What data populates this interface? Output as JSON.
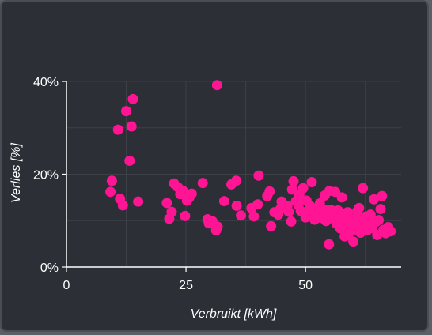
{
  "chart_data": {
    "type": "scatter",
    "title": "",
    "xlabel": "Verbruikt [kWh]",
    "ylabel": "Verlies [%]",
    "xlim": [
      0,
      70
    ],
    "ylim": [
      0,
      40
    ],
    "x_ticks": [
      "0",
      "25",
      "50"
    ],
    "x_tick_values": [
      0,
      25,
      50
    ],
    "y_ticks": [
      "0%",
      "20%",
      "40%"
    ],
    "y_tick_values": [
      0,
      20,
      40
    ],
    "grid": true,
    "colors": {
      "point": "#ff1493",
      "background": "#2c2f36",
      "grid": "#3d4047",
      "axis": "#ffffff"
    },
    "series": [
      {
        "points": [
          [
            9.2,
            16.2
          ],
          [
            9.5,
            18.6
          ],
          [
            11.2,
            14.7
          ],
          [
            11.8,
            13.3
          ],
          [
            10.8,
            29.6
          ],
          [
            12.5,
            33.6
          ],
          [
            13.9,
            36.2
          ],
          [
            13.6,
            30.3
          ],
          [
            13.2,
            22.9
          ],
          [
            15,
            14.1
          ],
          [
            31.5,
            39.2
          ],
          [
            21.0,
            13.8
          ],
          [
            21.5,
            10.4
          ],
          [
            22.0,
            11.9
          ],
          [
            22.5,
            18.0
          ],
          [
            23.3,
            17.2
          ],
          [
            23.8,
            15.7
          ],
          [
            24.3,
            16.5
          ],
          [
            24.8,
            11.0
          ],
          [
            25.2,
            14.3
          ],
          [
            25.7,
            15.0
          ],
          [
            26.2,
            15.8
          ],
          [
            28.5,
            18.1
          ],
          [
            29.5,
            10.3
          ],
          [
            29.8,
            9.4
          ],
          [
            30.5,
            9.9
          ],
          [
            31.6,
            8.7
          ],
          [
            31.3,
            7.9
          ],
          [
            33,
            14.2
          ],
          [
            34.5,
            17.8
          ],
          [
            35.5,
            18.6
          ],
          [
            35.6,
            13.2
          ],
          [
            36.5,
            11.1
          ],
          [
            38.7,
            12.7
          ],
          [
            39.2,
            10.9
          ],
          [
            40,
            13.5
          ],
          [
            40.2,
            19.7
          ],
          [
            42,
            15.3
          ],
          [
            42.5,
            16.3
          ],
          [
            42.8,
            8.8
          ],
          [
            43.5,
            11.8
          ],
          [
            44.3,
            11.3
          ],
          [
            44.8,
            12.6
          ],
          [
            45,
            14.1
          ],
          [
            45.5,
            13.4
          ],
          [
            46,
            12.7
          ],
          [
            46.5,
            11.9
          ],
          [
            47,
            9.8
          ],
          [
            47.2,
            16.7
          ],
          [
            47.5,
            18.5
          ],
          [
            48,
            14.2
          ],
          [
            48.5,
            13.3
          ],
          [
            49,
            12.1
          ],
          [
            49.5,
            17.0
          ],
          [
            50,
            10.7
          ],
          [
            50.2,
            14.3
          ],
          [
            50.5,
            12.0
          ],
          [
            51,
            13.1
          ],
          [
            51.3,
            18.3
          ],
          [
            51.8,
            11.5
          ],
          [
            52.2,
            12.6
          ],
          [
            52.6,
            10.9
          ],
          [
            53,
            13.7
          ],
          [
            53.3,
            10.6
          ],
          [
            53.6,
            11.8
          ],
          [
            54,
            15.4
          ],
          [
            54.3,
            9.9
          ],
          [
            54.6,
            11.2
          ],
          [
            54.9,
            4.9
          ],
          [
            55,
            16.4
          ],
          [
            55.3,
            12.3
          ],
          [
            55.6,
            10.5
          ],
          [
            55.9,
            11.1
          ],
          [
            56.2,
            16.2
          ],
          [
            56.5,
            9.3
          ],
          [
            56.8,
            12.2
          ],
          [
            57,
            10.0
          ],
          [
            57.3,
            8.3
          ],
          [
            57.6,
            15.0
          ],
          [
            57.9,
            10.8
          ],
          [
            58.2,
            6.6
          ],
          [
            58.5,
            9.5
          ],
          [
            58.8,
            11.8
          ],
          [
            59,
            7.2
          ],
          [
            59.3,
            10.3
          ],
          [
            59.6,
            8.9
          ],
          [
            59.9,
            9.9
          ],
          [
            60,
            5.5
          ],
          [
            60.3,
            8.1
          ],
          [
            60.6,
            10.6
          ],
          [
            60.9,
            9.0
          ],
          [
            61.2,
            12.7
          ],
          [
            61.5,
            7.4
          ],
          [
            61.8,
            9.6
          ],
          [
            62,
            17.0
          ],
          [
            62.3,
            8.5
          ],
          [
            62.6,
            10.9
          ],
          [
            62.9,
            7.9
          ],
          [
            63.2,
            9.1
          ],
          [
            63.6,
            11.3
          ],
          [
            64,
            8.4
          ],
          [
            64.3,
            14.6
          ],
          [
            64.7,
            9.7
          ],
          [
            65,
            6.9
          ],
          [
            65.3,
            10.1
          ],
          [
            65.7,
            12.5
          ],
          [
            66,
            15.3
          ],
          [
            66.3,
            8.0
          ],
          [
            66.8,
            7.3
          ],
          [
            67.3,
            8.6
          ],
          [
            67.8,
            7.7
          ],
          [
            54.2,
            12.3
          ],
          [
            51.9,
            10.2
          ],
          [
            48.7,
            15.6
          ],
          [
            46.2,
            13.2
          ],
          [
            57.4,
            11.6
          ],
          [
            60.8,
            12.0
          ],
          [
            62.4,
            10.2
          ],
          [
            58.9,
            7.8
          ]
        ]
      }
    ]
  }
}
